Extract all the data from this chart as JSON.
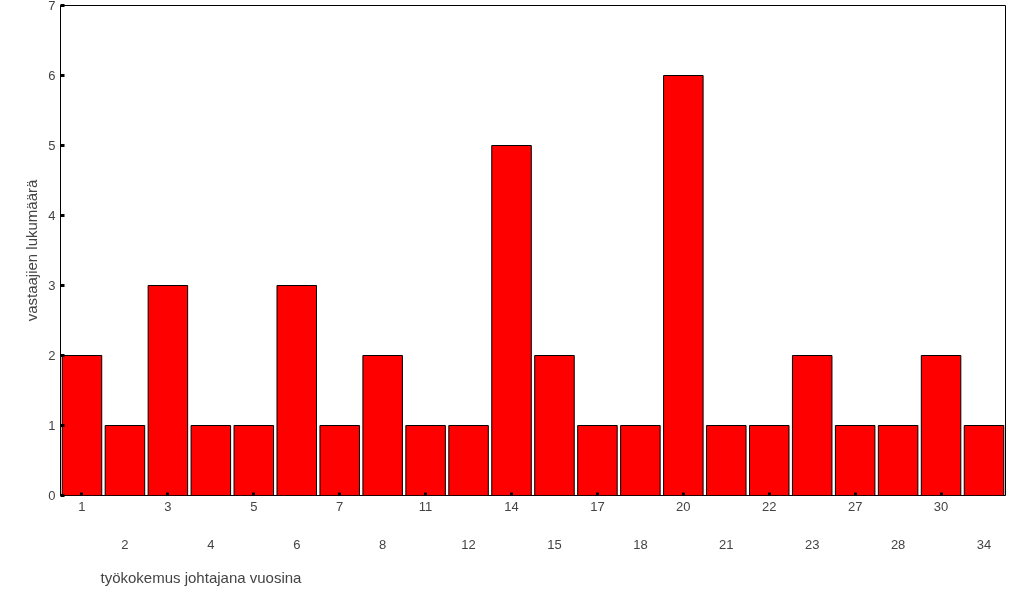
{
  "chart_data": {
    "type": "bar",
    "xlabel": "työkokemus johtajana vuosina",
    "ylabel": "vastaajien lukumäärä",
    "categories": [
      "1",
      "2",
      "3",
      "4",
      "5",
      "6",
      "7",
      "8",
      "11",
      "12",
      "14",
      "15",
      "17",
      "18",
      "20",
      "21",
      "22",
      "23",
      "27",
      "28",
      "30",
      "34"
    ],
    "values": [
      2,
      1,
      3,
      1,
      1,
      3,
      1,
      2,
      1,
      1,
      5,
      2,
      1,
      1,
      6,
      1,
      1,
      2,
      1,
      1,
      2,
      1
    ],
    "color": "#ff0000",
    "ylim": [
      0,
      7
    ],
    "yticks": [
      0,
      1,
      2,
      3,
      4,
      5,
      6,
      7
    ],
    "grid": false
  }
}
